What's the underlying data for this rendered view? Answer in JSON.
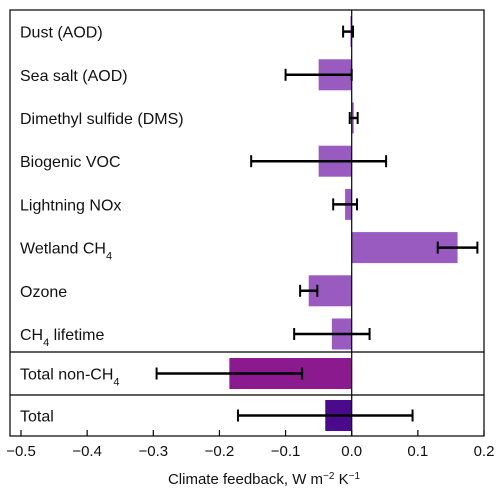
{
  "chart_data": {
    "type": "bar",
    "orientation": "horizontal",
    "xlabel": "Climate feedback, W m⁻² K⁻¹",
    "xlim": [
      -0.5,
      0.2
    ],
    "xticks": [
      "−0.5",
      "−0.4",
      "−0.3",
      "−0.2",
      "−0.1",
      "0.0",
      "0.1",
      "0.2"
    ],
    "xtick_values": [
      -0.5,
      -0.4,
      -0.3,
      -0.2,
      -0.1,
      0.0,
      0.1,
      0.2
    ],
    "categories": [
      {
        "label": "Dust (AOD)",
        "value": -0.002,
        "err_low": -0.013,
        "err_high": 0.002,
        "color": "#9a5bc0"
      },
      {
        "label": "Sea salt (AOD)",
        "value": -0.05,
        "err_low": -0.1,
        "err_high": 0.0,
        "color": "#9a5bc0"
      },
      {
        "label": "Dimethyl sulfide (DMS)",
        "value": 0.003,
        "err_low": -0.003,
        "err_high": 0.009,
        "color": "#9a5bc0"
      },
      {
        "label": "Biogenic VOC",
        "value": -0.05,
        "err_low": -0.152,
        "err_high": 0.052,
        "color": "#9a5bc0"
      },
      {
        "label": "Lightning NOx",
        "value": -0.01,
        "err_low": -0.028,
        "err_high": 0.008,
        "color": "#9a5bc0"
      },
      {
        "label": "Wetland CH",
        "sub": "4",
        "value": 0.16,
        "err_low": 0.13,
        "err_high": 0.19,
        "color": "#9a5bc0"
      },
      {
        "label": "Ozone",
        "value": -0.065,
        "err_low": -0.078,
        "err_high": -0.052,
        "color": "#9a5bc0"
      },
      {
        "label": "CH",
        "sub": "4",
        "suffix": " lifetime",
        "value": -0.03,
        "err_low": -0.087,
        "err_high": 0.027,
        "color": "#9a5bc0"
      },
      {
        "label": "Total non-CH",
        "sub": "4",
        "value": -0.185,
        "err_low": -0.295,
        "err_high": -0.075,
        "color": "#8b1a8f",
        "group": "totals"
      },
      {
        "label": "Total",
        "value": -0.04,
        "err_low": -0.172,
        "err_high": 0.092,
        "color": "#4b0a8c",
        "group": "totals"
      }
    ],
    "grid": false,
    "legend": "none"
  }
}
